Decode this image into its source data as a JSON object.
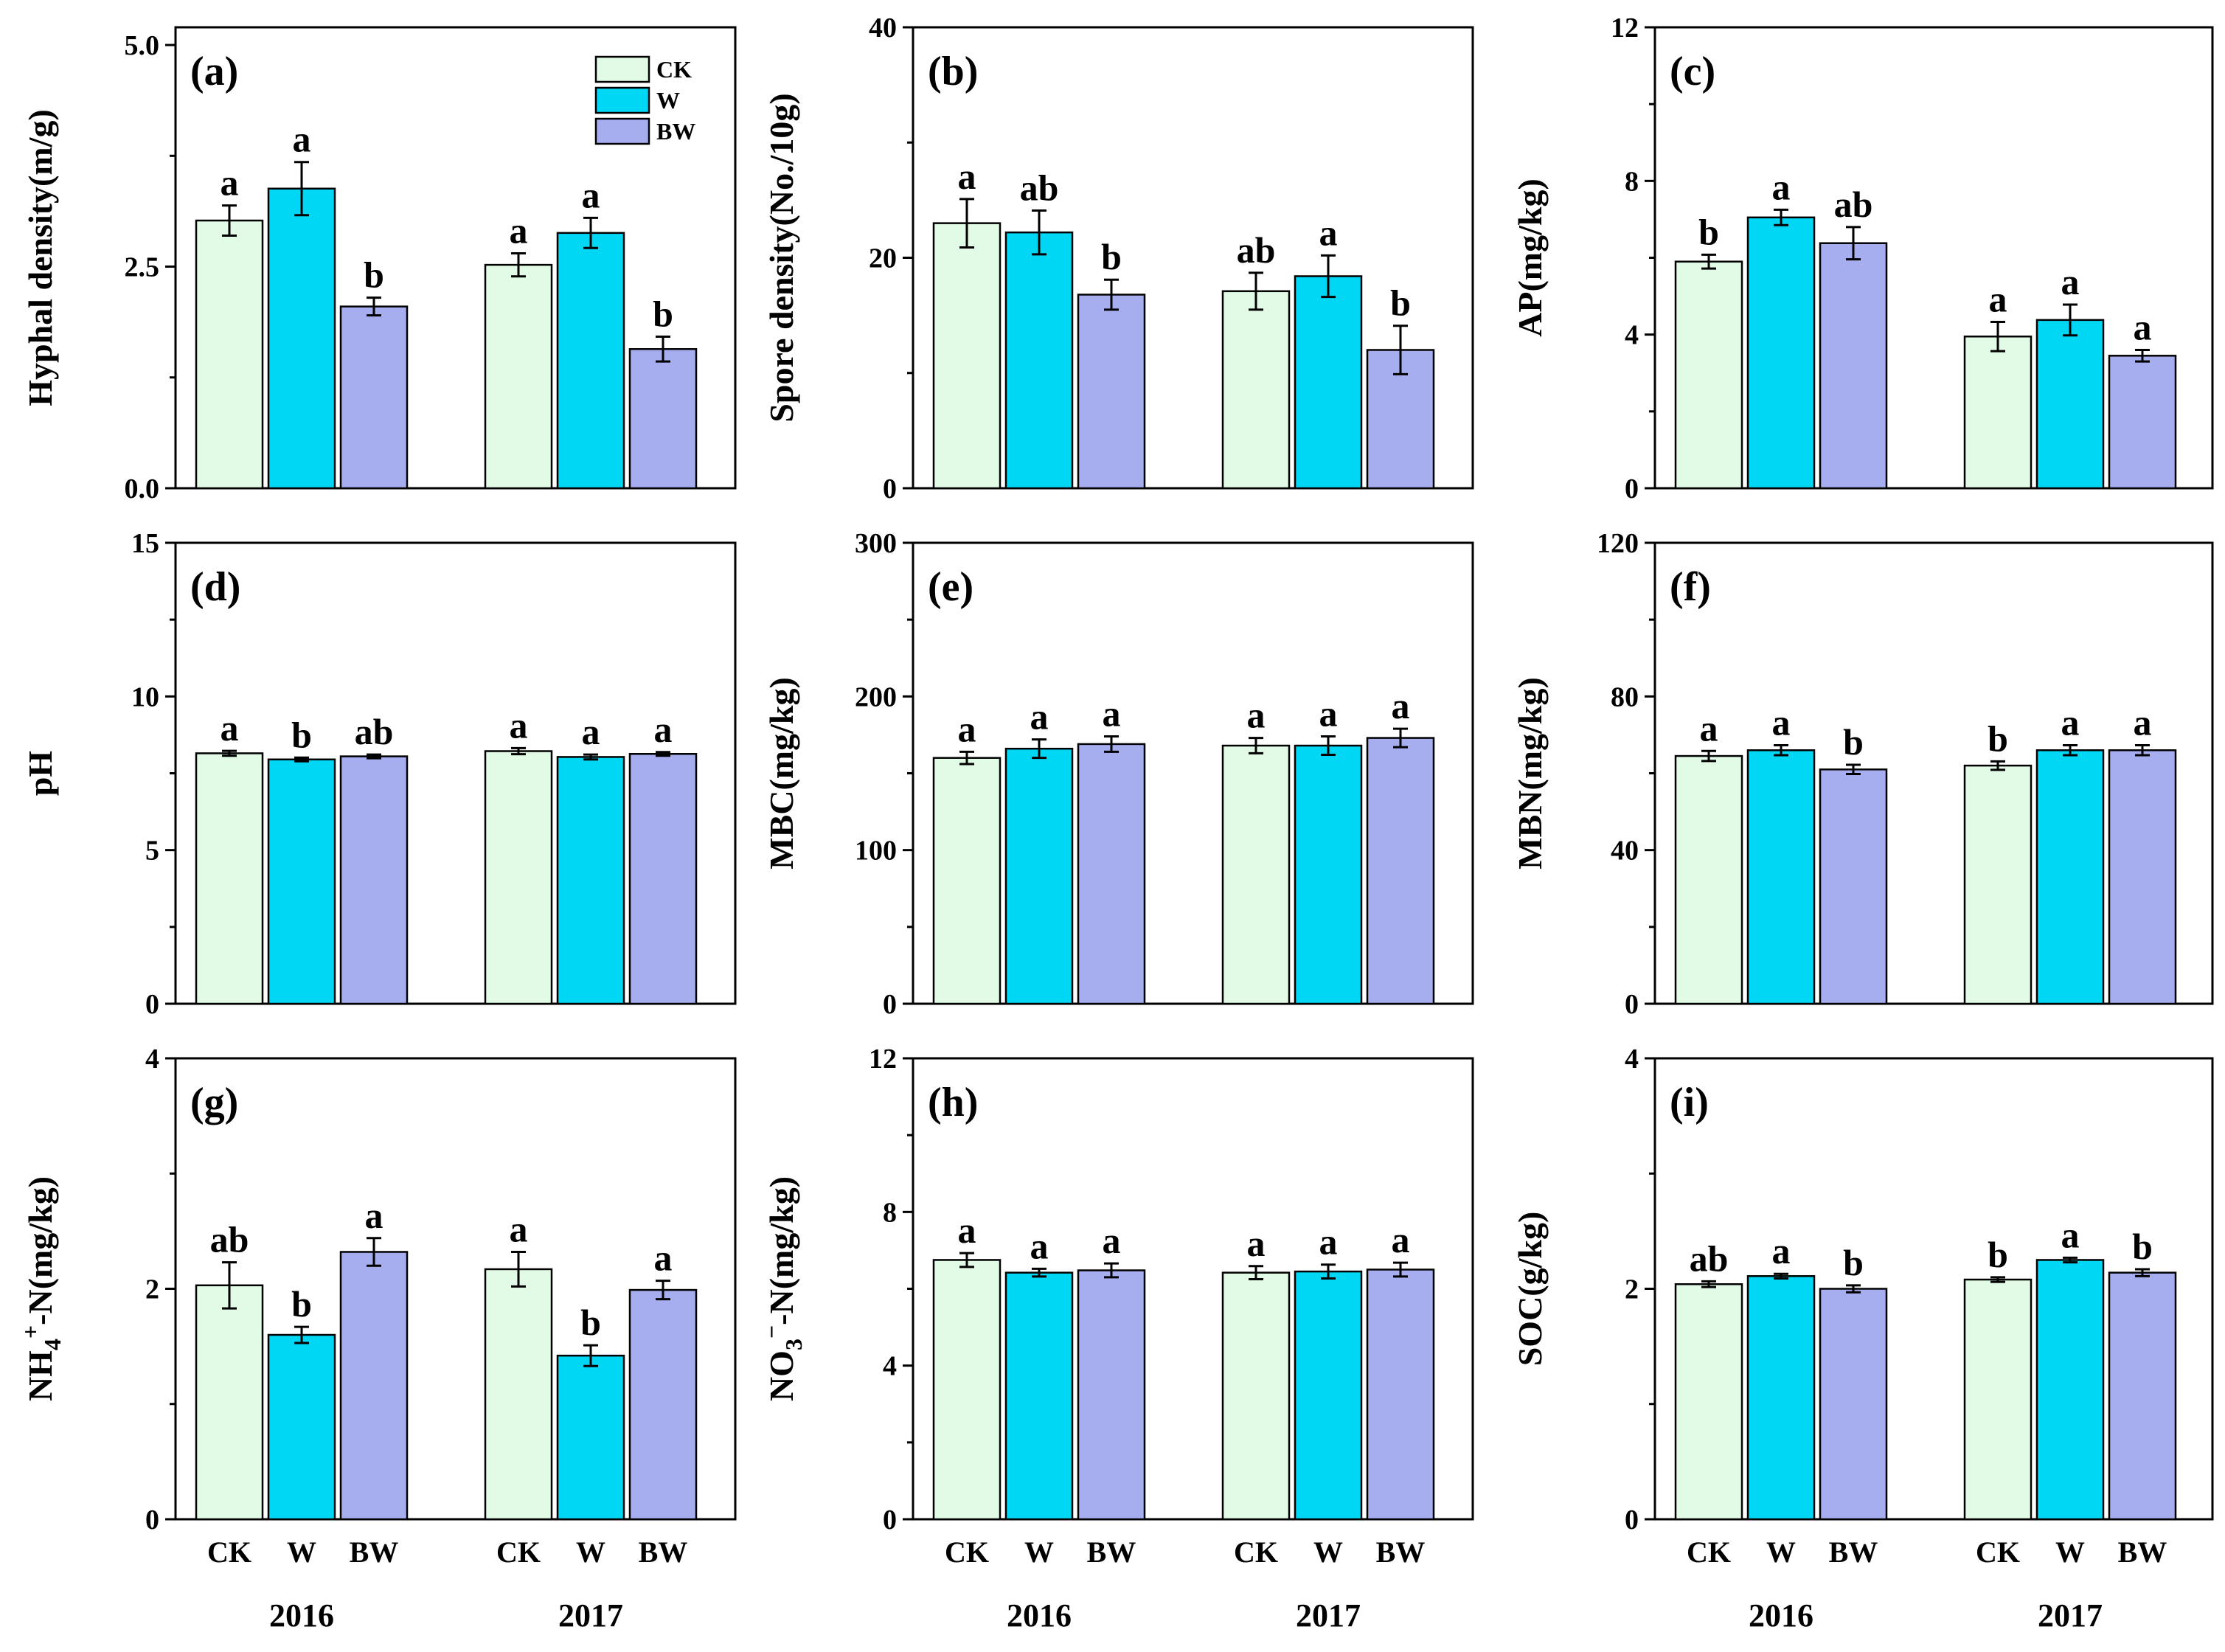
{
  "colors": {
    "CK": "#e2fbe6",
    "W": "#00d7f5",
    "BW": "#a6aeef"
  },
  "legend": [
    {
      "key": "CK",
      "label": "CK"
    },
    {
      "key": "W",
      "label": "W"
    },
    {
      "key": "BW",
      "label": "BW"
    }
  ],
  "x_axis": {
    "categories": [
      "CK",
      "W",
      "BW"
    ],
    "years": [
      "2016",
      "2017"
    ]
  },
  "chart_data": [
    {
      "type": "bar",
      "panel": "(a)",
      "ylabel": "Hyphal density(m/g)",
      "ylim": [
        0,
        5.2
      ],
      "yticks": [
        0,
        2.5,
        5
      ],
      "ytick_labels": [
        "0.0",
        "2.5",
        "5.0"
      ],
      "years": [
        "2016",
        "2017"
      ],
      "treatments": [
        "CK",
        "W",
        "BW"
      ],
      "values": [
        [
          3.02,
          3.38,
          2.05
        ],
        [
          2.52,
          2.88,
          1.57
        ]
      ],
      "errors": [
        [
          0.17,
          0.3,
          0.1
        ],
        [
          0.13,
          0.17,
          0.14
        ]
      ],
      "letters": [
        [
          "a",
          "a",
          "b"
        ],
        [
          "a",
          "a",
          "b"
        ]
      ],
      "legend": true
    },
    {
      "type": "bar",
      "panel": "(b)",
      "ylabel": "Spore density(No./10g)",
      "ylim": [
        0,
        40
      ],
      "yticks": [
        0,
        20,
        40
      ],
      "ytick_labels": [
        "0",
        "20",
        "40"
      ],
      "years": [
        "2016",
        "2017"
      ],
      "treatments": [
        "CK",
        "W",
        "BW"
      ],
      "values": [
        [
          23.0,
          22.2,
          16.8
        ],
        [
          17.1,
          18.4,
          12.0
        ]
      ],
      "errors": [
        [
          2.1,
          1.9,
          1.3
        ],
        [
          1.6,
          1.8,
          2.1
        ]
      ],
      "letters": [
        [
          "a",
          "ab",
          "b"
        ],
        [
          "ab",
          "a",
          "b"
        ]
      ]
    },
    {
      "type": "bar",
      "panel": "(c)",
      "ylabel": "AP(mg/kg)",
      "ylim": [
        0,
        12
      ],
      "yticks": [
        0,
        4,
        8,
        12
      ],
      "ytick_labels": [
        "0",
        "4",
        "8",
        "12"
      ],
      "years": [
        "2016",
        "2017"
      ],
      "treatments": [
        "CK",
        "W",
        "BW"
      ],
      "values": [
        [
          5.9,
          7.05,
          6.38
        ],
        [
          3.95,
          4.38,
          3.45
        ]
      ],
      "errors": [
        [
          0.18,
          0.2,
          0.42
        ],
        [
          0.38,
          0.4,
          0.15
        ]
      ],
      "letters": [
        [
          "b",
          "a",
          "ab"
        ],
        [
          "a",
          "a",
          "a"
        ]
      ]
    },
    {
      "type": "bar",
      "panel": "(d)",
      "ylabel": "pH",
      "ylim": [
        0,
        15
      ],
      "yticks": [
        0,
        5,
        10,
        15
      ],
      "ytick_labels": [
        "0",
        "5",
        "10",
        "15"
      ],
      "years": [
        "2016",
        "2017"
      ],
      "treatments": [
        "CK",
        "W",
        "BW"
      ],
      "values": [
        [
          8.15,
          7.95,
          8.05
        ],
        [
          8.22,
          8.03,
          8.13
        ]
      ],
      "errors": [
        [
          0.08,
          0.06,
          0.06
        ],
        [
          0.1,
          0.08,
          0.06
        ]
      ],
      "letters": [
        [
          "a",
          "b",
          "ab"
        ],
        [
          "a",
          "a",
          "a"
        ]
      ]
    },
    {
      "type": "bar",
      "panel": "(e)",
      "ylabel": "MBC(mg/kg)",
      "ylim": [
        0,
        300
      ],
      "yticks": [
        0,
        100,
        200,
        300
      ],
      "ytick_labels": [
        "0",
        "100",
        "200",
        "300"
      ],
      "years": [
        "2016",
        "2017"
      ],
      "treatments": [
        "CK",
        "W",
        "BW"
      ],
      "values": [
        [
          160,
          166,
          169
        ],
        [
          168,
          168,
          173
        ]
      ],
      "errors": [
        [
          4,
          6,
          5
        ],
        [
          5,
          6,
          6
        ]
      ],
      "letters": [
        [
          "a",
          "a",
          "a"
        ],
        [
          "a",
          "a",
          "a"
        ]
      ]
    },
    {
      "type": "bar",
      "panel": "(f)",
      "ylabel": "MBN(mg/kg)",
      "ylim": [
        0,
        120
      ],
      "yticks": [
        0,
        40,
        80,
        120
      ],
      "ytick_labels": [
        "0",
        "40",
        "80",
        "120"
      ],
      "years": [
        "2016",
        "2017"
      ],
      "treatments": [
        "CK",
        "W",
        "BW"
      ],
      "values": [
        [
          64.5,
          66,
          61
        ],
        [
          62,
          66,
          66
        ]
      ],
      "errors": [
        [
          1.3,
          1.3,
          1.2
        ],
        [
          1.1,
          1.3,
          1.3
        ]
      ],
      "letters": [
        [
          "a",
          "a",
          "b"
        ],
        [
          "b",
          "a",
          "a"
        ]
      ]
    },
    {
      "type": "bar",
      "panel": "(g)",
      "ylabel_html": "NH<tspan dy=\"12\" font-size=\"32\">4</tspan><tspan dy=\"-30\" font-size=\"32\">+</tspan><tspan dy=\"18\">-N(mg/kg)</tspan>",
      "ylabel": "NH4+-N(mg/kg)",
      "ylim": [
        0,
        4
      ],
      "yticks": [
        0,
        2,
        4
      ],
      "ytick_labels": [
        "0",
        "2",
        "4"
      ],
      "years": [
        "2016",
        "2017"
      ],
      "treatments": [
        "CK",
        "W",
        "BW"
      ],
      "values": [
        [
          2.03,
          1.6,
          2.32
        ],
        [
          2.17,
          1.42,
          1.99
        ]
      ],
      "errors": [
        [
          0.2,
          0.07,
          0.12
        ],
        [
          0.15,
          0.09,
          0.08
        ]
      ],
      "letters": [
        [
          "ab",
          "b",
          "a"
        ],
        [
          "a",
          "b",
          "a"
        ]
      ]
    },
    {
      "type": "bar",
      "panel": "(h)",
      "ylabel": "NO3−-N(mg/kg)",
      "ylim": [
        0,
        12
      ],
      "yticks": [
        0,
        4,
        8,
        12
      ],
      "ytick_labels": [
        "0",
        "4",
        "8",
        "12"
      ],
      "years": [
        "2016",
        "2017"
      ],
      "treatments": [
        "CK",
        "W",
        "BW"
      ],
      "values": [
        [
          6.75,
          6.42,
          6.48
        ],
        [
          6.42,
          6.45,
          6.5
        ]
      ],
      "errors": [
        [
          0.18,
          0.1,
          0.18
        ],
        [
          0.17,
          0.18,
          0.18
        ]
      ],
      "letters": [
        [
          "a",
          "a",
          "a"
        ],
        [
          "a",
          "a",
          "a"
        ]
      ]
    },
    {
      "type": "bar",
      "panel": "(i)",
      "ylabel": "SOC(g/kg)",
      "ylim": [
        0,
        4
      ],
      "yticks": [
        0,
        2,
        4
      ],
      "ytick_labels": [
        "0",
        "2",
        "4"
      ],
      "years": [
        "2016",
        "2017"
      ],
      "treatments": [
        "CK",
        "W",
        "BW"
      ],
      "values": [
        [
          2.04,
          2.11,
          2.0
        ],
        [
          2.08,
          2.25,
          2.14
        ]
      ],
      "errors": [
        [
          0.025,
          0.02,
          0.03
        ],
        [
          0.02,
          0.02,
          0.03
        ]
      ],
      "letters": [
        [
          "ab",
          "a",
          "b"
        ],
        [
          "b",
          "a",
          "b"
        ]
      ]
    }
  ]
}
